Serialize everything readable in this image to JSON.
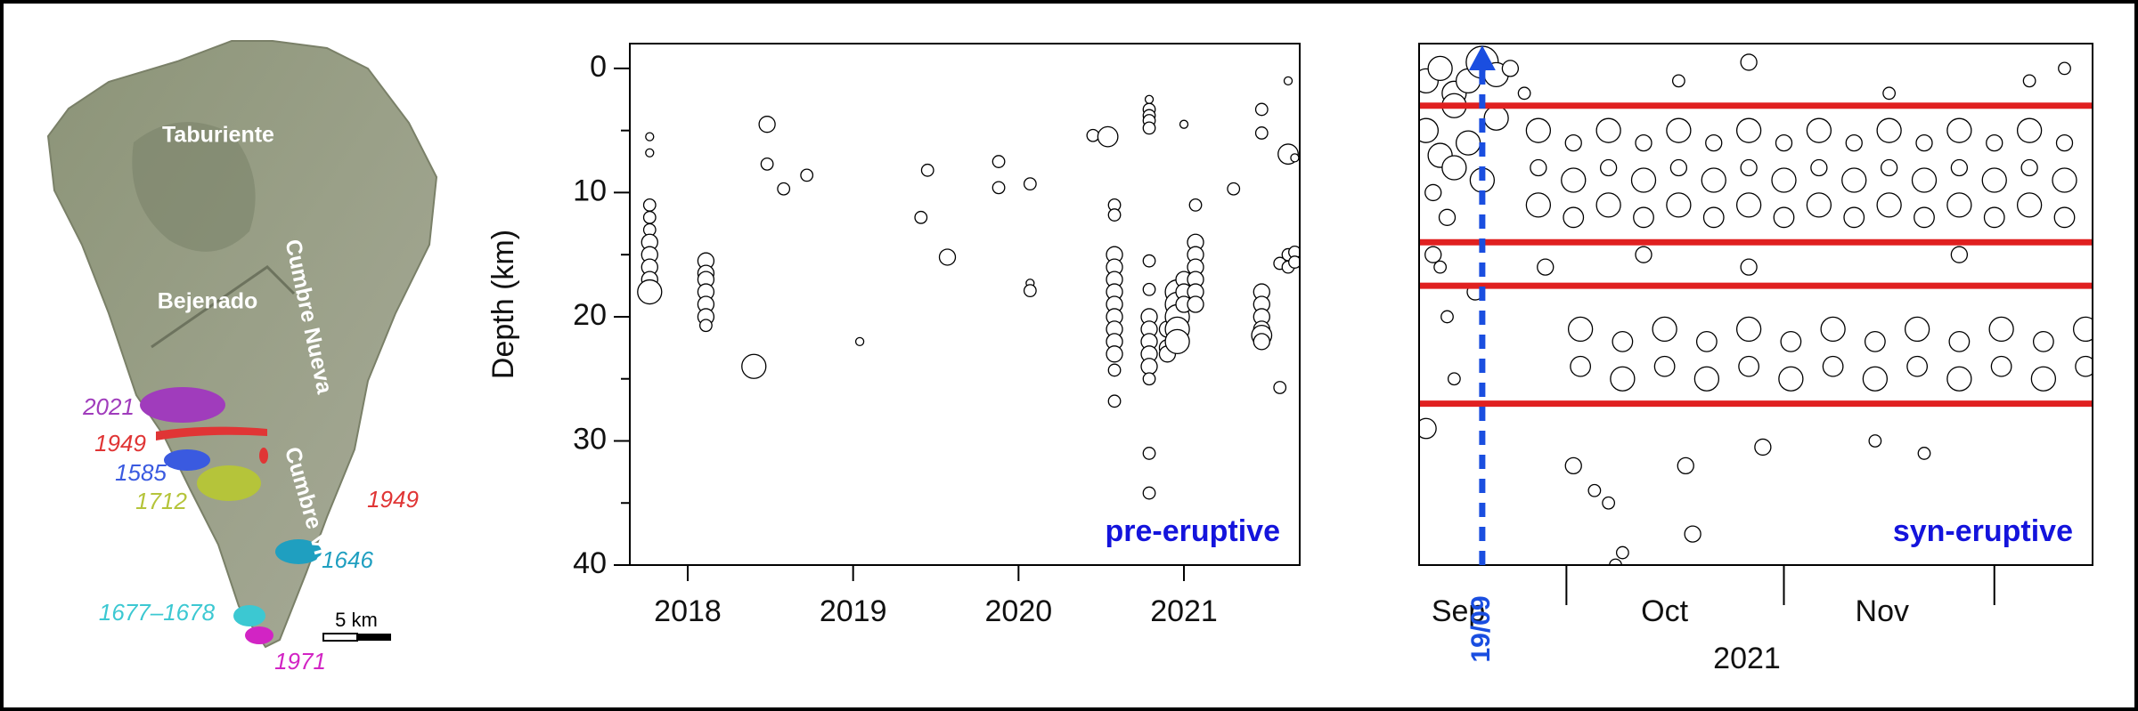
{
  "map": {
    "labels": [
      "Taburiente",
      "Bejenado",
      "Cumbre Nueva",
      "Cumbre Vieja"
    ],
    "eruptions": [
      {
        "label": "2021",
        "color": "#a03cbc"
      },
      {
        "label": "1949",
        "color": "#e03535"
      },
      {
        "label": "1585",
        "color": "#3a5ae0"
      },
      {
        "label": "1712",
        "color": "#b5c43a"
      },
      {
        "label": "1949",
        "color": "#e03535"
      },
      {
        "label": "1646",
        "color": "#1f9fc0"
      },
      {
        "label": "1677–1678",
        "color": "#3cc8d2"
      },
      {
        "label": "1971",
        "color": "#d224c4"
      }
    ],
    "scale_bar": "5 km"
  },
  "chart_data": [
    {
      "type": "scatter",
      "ylabel": "Depth (km)",
      "annotation": "pre-eruptive",
      "annotation_color": "#1414dc",
      "xlim": [
        2017.65,
        2021.7
      ],
      "xticks": [
        2018,
        2019,
        2020,
        2021
      ],
      "ylim": [
        -2,
        40
      ],
      "y_inverted": true,
      "yticks": [
        0,
        10,
        20,
        30,
        40
      ],
      "yminor_ticks": [
        5,
        15,
        25,
        35
      ],
      "x": [
        2017.77,
        2017.77,
        2017.77,
        2017.77,
        2017.77,
        2017.77,
        2017.77,
        2017.77,
        2017.77,
        2017.77,
        2018.11,
        2018.11,
        2018.11,
        2018.11,
        2018.11,
        2018.11,
        2018.11,
        2018.4,
        2018.48,
        2018.48,
        2018.58,
        2018.72,
        2019.04,
        2019.41,
        2019.45,
        2019.57,
        2019.88,
        2019.88,
        2020.07,
        2020.07,
        2020.07,
        2020.45,
        2020.54,
        2021.3,
        2020.58,
        2020.58,
        2020.58,
        2020.58,
        2020.58,
        2020.58,
        2020.58,
        2020.58,
        2020.58,
        2020.58,
        2020.58,
        2020.58,
        2020.58,
        2020.79,
        2020.79,
        2020.79,
        2020.79,
        2020.79,
        2020.79,
        2020.79,
        2020.79,
        2020.79,
        2020.79,
        2020.79,
        2020.79,
        2020.79,
        2020.79,
        2020.79,
        2020.9,
        2020.9,
        2020.9,
        2020.96,
        2020.96,
        2020.96,
        2020.96,
        2020.96,
        2021.0,
        2021.0,
        2021.0,
        2021.0,
        2021.07,
        2021.07,
        2021.07,
        2021.07,
        2021.07,
        2021.07,
        2021.07,
        2021.47,
        2021.47,
        2021.47,
        2021.47,
        2021.47,
        2021.47,
        2021.47,
        2021.47,
        2021.58,
        2021.58,
        2021.63,
        2021.63,
        2021.63,
        2021.63,
        2021.67,
        2021.67,
        2021.67
      ],
      "values": [
        5.5,
        6.8,
        11,
        12,
        13,
        14,
        15,
        16,
        17,
        18,
        15.5,
        16.5,
        17,
        18,
        19,
        20,
        20.7,
        24,
        4.5,
        7.7,
        9.7,
        8.6,
        22,
        12,
        8.2,
        15.2,
        7.5,
        9.6,
        9.3,
        17.3,
        17.9,
        5.4,
        5.5,
        9.7,
        11,
        11.8,
        15,
        16,
        17,
        18,
        19,
        20,
        21,
        22,
        23,
        24.3,
        26.8,
        2.5,
        3.3,
        3.8,
        4.2,
        4.8,
        15.5,
        17.8,
        20,
        21,
        22,
        23,
        24,
        25,
        31,
        34.2,
        21,
        22.5,
        23,
        18,
        19,
        20,
        21,
        22,
        4.5,
        17,
        18,
        19,
        14,
        15,
        16,
        17,
        18,
        19,
        11,
        3.3,
        5.2,
        18,
        19,
        20,
        21,
        21.5,
        22,
        15.7,
        25.7,
        1,
        6.9,
        15,
        16,
        7.2,
        14.8,
        15.6
      ],
      "sizes": [
        1,
        1,
        1.5,
        1.5,
        1.5,
        2,
        2,
        2,
        2,
        3,
        2,
        2,
        2,
        2,
        2,
        2,
        1.5,
        3,
        2,
        1.5,
        1.5,
        1.5,
        1,
        1.5,
        1.5,
        2,
        1.5,
        1.5,
        1.5,
        1,
        1.5,
        1.5,
        2.5,
        1.5,
        1.5,
        1.5,
        2,
        2,
        2,
        2,
        2,
        2,
        2,
        2,
        2,
        1.5,
        1.5,
        1,
        1.5,
        1.5,
        1.5,
        1.5,
        1.5,
        1.5,
        2,
        2,
        2,
        2,
        2,
        1.5,
        1.5,
        1.5,
        2,
        2,
        2,
        3,
        3,
        3,
        3,
        3,
        1,
        2,
        2,
        2,
        2,
        2,
        2,
        2,
        2,
        2,
        1.5,
        1.5,
        1.5,
        2,
        2,
        2,
        2,
        2.5,
        2,
        1.5,
        1.5,
        1,
        2.5,
        1.5,
        1.5,
        1,
        1.5,
        1.5
      ]
    },
    {
      "type": "scatter",
      "xlabel": "2021",
      "annotation": "syn-eruptive",
      "annotation_color": "#1414dc",
      "xlim": [
        253,
        349
      ],
      "xticks": [
        274,
        305,
        335
      ],
      "xlabels": [
        {
          "value": 258.6,
          "label": "Sep"
        },
        {
          "value": 288,
          "label": "Oct"
        },
        {
          "value": 319,
          "label": "Nov"
        }
      ],
      "ylim": [
        -2,
        40
      ],
      "y_inverted": true,
      "hlines": {
        "values": [
          3,
          14,
          17.5,
          27
        ],
        "color": "#e02020"
      },
      "event": {
        "x": 262,
        "label": "19/09",
        "color": "#1a4ee0"
      },
      "x": [
        254,
        256,
        258,
        260,
        262,
        264,
        266,
        254,
        256,
        258,
        260,
        262,
        264,
        255,
        257,
        255,
        256,
        257,
        258,
        254,
        258,
        261,
        270,
        270,
        270,
        275,
        275,
        275,
        280,
        280,
        280,
        285,
        285,
        285,
        290,
        290,
        290,
        295,
        295,
        295,
        300,
        300,
        300,
        305,
        305,
        305,
        310,
        310,
        310,
        315,
        315,
        315,
        320,
        320,
        320,
        325,
        325,
        325,
        330,
        330,
        330,
        335,
        335,
        335,
        340,
        340,
        340,
        345,
        345,
        345,
        271,
        285,
        300,
        330,
        268,
        290,
        320,
        340,
        345,
        300,
        276,
        276,
        282,
        282,
        288,
        288,
        294,
        294,
        300,
        300,
        306,
        306,
        312,
        312,
        318,
        318,
        324,
        324,
        330,
        330,
        336,
        336,
        342,
        342,
        348,
        348,
        275,
        278,
        280,
        282,
        281,
        291,
        302,
        292,
        318,
        325
      ],
      "values": [
        1,
        0,
        2,
        1,
        -0.5,
        0.5,
        0,
        5,
        7,
        8,
        6,
        9,
        4,
        10,
        12,
        15,
        16,
        20,
        25,
        29,
        3,
        18,
        5,
        8,
        11,
        6,
        9,
        12,
        5,
        8,
        11,
        6,
        9,
        12,
        5,
        8,
        11,
        6,
        9,
        12,
        5,
        8,
        11,
        6,
        9,
        12,
        5,
        8,
        11,
        6,
        9,
        12,
        5,
        8,
        11,
        6,
        9,
        12,
        5,
        8,
        11,
        6,
        9,
        12,
        5,
        8,
        11,
        6,
        9,
        12,
        16,
        15,
        16,
        15,
        2,
        1,
        2,
        1,
        0,
        -0.5,
        21,
        24,
        22,
        25,
        21,
        24,
        22,
        25,
        21,
        24,
        22,
        25,
        21,
        24,
        22,
        25,
        21,
        24,
        22,
        25,
        21,
        24,
        22,
        25,
        21,
        24,
        32,
        34,
        35,
        39,
        40,
        32,
        30.5,
        37.5,
        30,
        31
      ],
      "sizes": [
        3,
        3,
        3,
        3,
        4,
        3,
        2,
        3,
        3,
        3,
        3,
        3,
        3,
        2,
        2,
        2,
        1.5,
        1.5,
        1.5,
        2.5,
        3,
        2,
        3,
        2,
        3,
        2,
        3,
        2.5,
        3,
        2,
        3,
        2,
        3,
        2.5,
        3,
        2,
        3,
        2,
        3,
        2.5,
        3,
        2,
        3,
        2,
        3,
        2.5,
        3,
        2,
        3,
        2,
        3,
        2.5,
        3,
        2,
        3,
        2,
        3,
        2.5,
        3,
        2,
        3,
        2,
        3,
        2.5,
        3,
        2,
        3,
        2,
        3,
        2.5,
        2,
        2,
        2,
        2,
        1.5,
        1.5,
        1.5,
        1.5,
        1.5,
        2,
        3,
        2.5,
        2.5,
        3,
        3,
        2.5,
        2.5,
        3,
        3,
        2.5,
        2.5,
        3,
        3,
        2.5,
        2.5,
        3,
        3,
        2.5,
        2.5,
        3,
        3,
        2.5,
        2.5,
        3,
        3,
        2.5,
        2,
        1.5,
        1.5,
        1.5,
        1.5,
        2,
        2,
        2,
        1.5,
        1.5
      ]
    }
  ]
}
